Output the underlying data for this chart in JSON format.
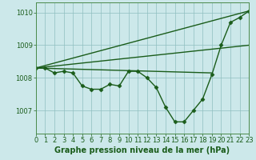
{
  "background_color": "#cce8ea",
  "grid_color": "#8fbfbf",
  "line_color": "#1a5c1a",
  "title": "Graphe pression niveau de la mer (hPa)",
  "xlim": [
    0,
    23
  ],
  "ylim": [
    1006.3,
    1010.3
  ],
  "yticks": [
    1007,
    1008,
    1009,
    1010
  ],
  "xticks": [
    0,
    1,
    2,
    3,
    4,
    5,
    6,
    7,
    8,
    9,
    10,
    11,
    12,
    13,
    14,
    15,
    16,
    17,
    18,
    19,
    20,
    21,
    22,
    23
  ],
  "main_series": {
    "x": [
      0,
      1,
      2,
      3,
      4,
      5,
      6,
      7,
      8,
      9,
      10,
      11,
      12,
      13,
      14,
      15,
      16,
      17,
      18,
      19,
      20,
      21,
      22,
      23
    ],
    "y": [
      1008.3,
      1008.3,
      1008.15,
      1008.2,
      1008.15,
      1007.75,
      1007.65,
      1007.65,
      1007.8,
      1007.75,
      1008.2,
      1008.2,
      1008.0,
      1007.7,
      1007.1,
      1006.65,
      1006.65,
      1007.0,
      1007.35,
      1008.1,
      1009.0,
      1009.7,
      1009.85,
      1010.05
    ],
    "marker": "D",
    "markersize": 2.5,
    "linewidth": 1.0
  },
  "ref_lines": [
    {
      "x0": 0,
      "x1": 23,
      "y0": 1008.3,
      "y1": 1010.05,
      "linewidth": 1.0
    },
    {
      "x0": 0,
      "x1": 19,
      "y0": 1008.3,
      "y1": 1008.15,
      "linewidth": 1.0
    },
    {
      "x0": 0,
      "x1": 23,
      "y0": 1008.3,
      "y1": 1009.0,
      "linewidth": 1.0
    }
  ],
  "title_fontsize": 7,
  "tick_fontsize": 6,
  "title_color": "#1a5c1a",
  "tick_color": "#1a5c1a",
  "spine_color": "#4a8a4a"
}
